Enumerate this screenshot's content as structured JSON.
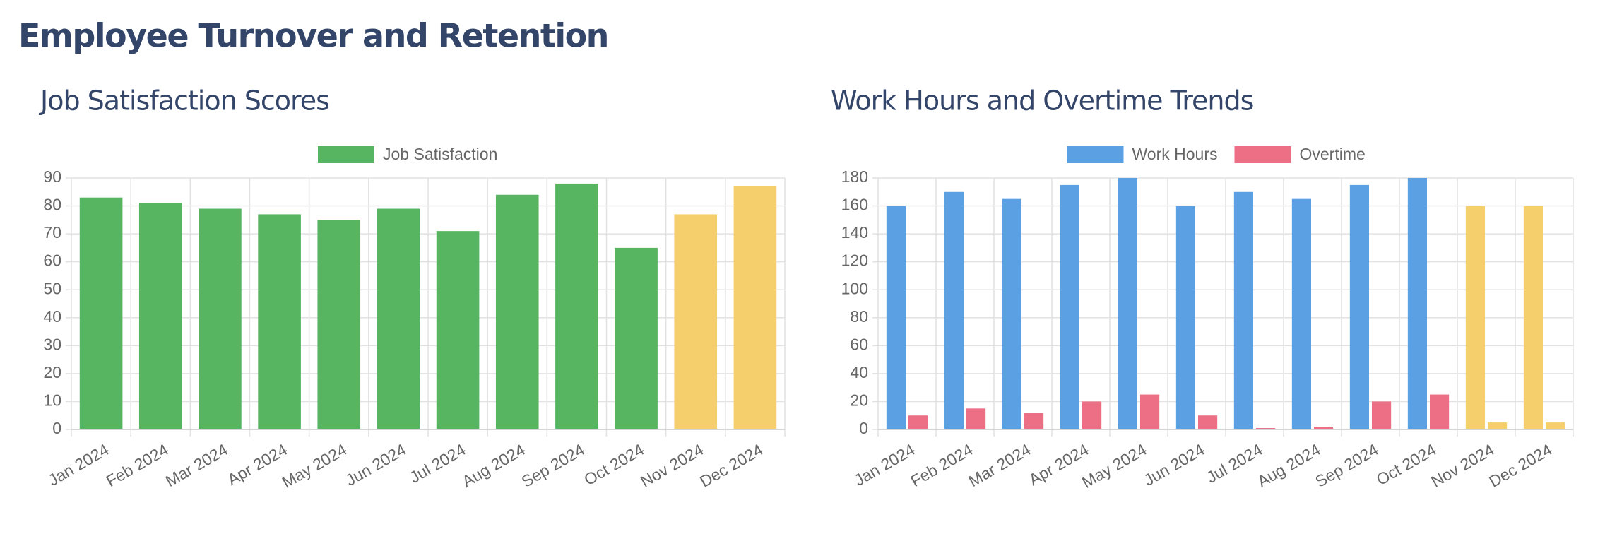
{
  "title": "Employee Turnover and Retention",
  "chart_data": [
    {
      "type": "bar",
      "title": "Job Satisfaction Scores",
      "categories": [
        "Jan 2024",
        "Feb 2024",
        "Mar 2024",
        "Apr 2024",
        "May 2024",
        "Jun 2024",
        "Jul 2024",
        "Aug 2024",
        "Sep 2024",
        "Oct 2024",
        "Nov 2024",
        "Dec 2024"
      ],
      "series": [
        {
          "name": "Job Satisfaction",
          "color": "#57b460",
          "colors": [
            "#57b460",
            "#57b460",
            "#57b460",
            "#57b460",
            "#57b460",
            "#57b460",
            "#57b460",
            "#57b460",
            "#57b460",
            "#57b460",
            "#f5cf6b",
            "#f5cf6b"
          ],
          "values": [
            83,
            81,
            79,
            77,
            75,
            79,
            71,
            84,
            88,
            65,
            77,
            87
          ]
        }
      ],
      "ylim": [
        0,
        90
      ],
      "yticks": [
        0,
        10,
        20,
        30,
        40,
        50,
        60,
        70,
        80,
        90
      ],
      "grid": true,
      "legend": "top"
    },
    {
      "type": "bar",
      "title": "Work Hours and Overtime Trends",
      "categories": [
        "Jan 2024",
        "Feb 2024",
        "Mar 2024",
        "Apr 2024",
        "May 2024",
        "Jun 2024",
        "Jul 2024",
        "Aug 2024",
        "Sep 2024",
        "Oct 2024",
        "Nov 2024",
        "Dec 2024"
      ],
      "series": [
        {
          "name": "Work Hours",
          "color": "#5aa0e3",
          "colors": [
            "#5aa0e3",
            "#5aa0e3",
            "#5aa0e3",
            "#5aa0e3",
            "#5aa0e3",
            "#5aa0e3",
            "#5aa0e3",
            "#5aa0e3",
            "#5aa0e3",
            "#5aa0e3",
            "#f5cf6b",
            "#f5cf6b"
          ],
          "values": [
            160,
            170,
            165,
            175,
            180,
            160,
            170,
            165,
            175,
            180,
            160,
            160
          ]
        },
        {
          "name": "Overtime",
          "color": "#ec6f85",
          "colors": [
            "#ec6f85",
            "#ec6f85",
            "#ec6f85",
            "#ec6f85",
            "#ec6f85",
            "#ec6f85",
            "#ec6f85",
            "#ec6f85",
            "#ec6f85",
            "#ec6f85",
            "#f5cf6b",
            "#f5cf6b"
          ],
          "values": [
            10,
            15,
            12,
            20,
            25,
            10,
            1,
            2,
            20,
            25,
            5,
            5
          ]
        }
      ],
      "ylim": [
        0,
        180
      ],
      "yticks": [
        0,
        20,
        40,
        60,
        80,
        100,
        120,
        140,
        160,
        180
      ],
      "grid": true,
      "legend": "top"
    }
  ]
}
